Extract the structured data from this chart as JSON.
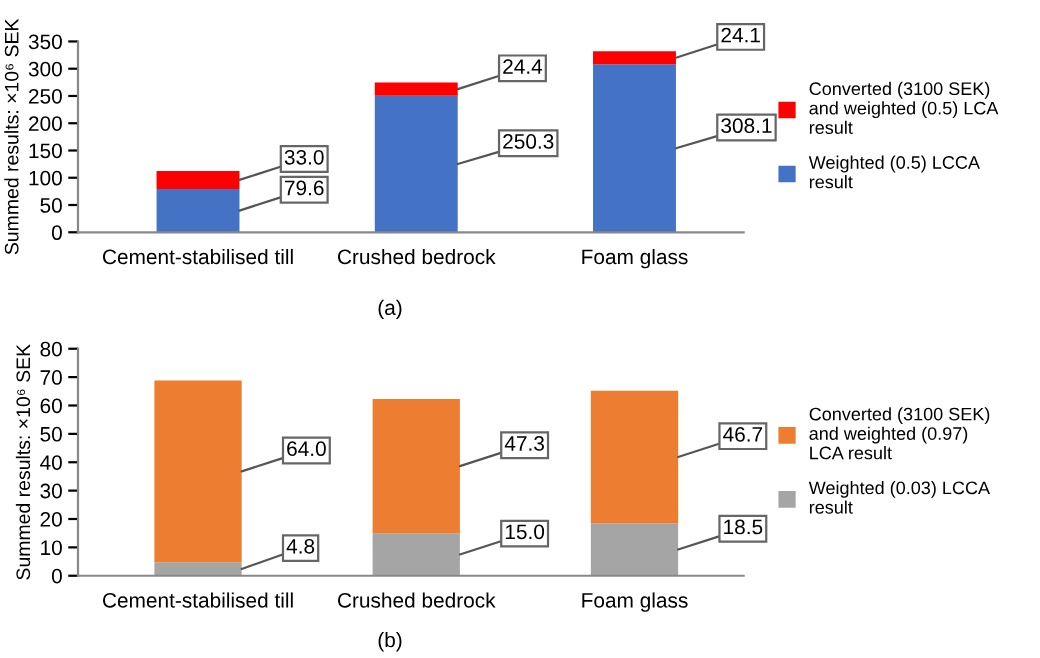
{
  "chart_data": [
    {
      "type": "bar",
      "stacked": true,
      "ylabel": "Summed results: ×10⁶ SEK",
      "categories": [
        "Cement-stabilised till",
        "Crushed bedrock",
        "Foam glass"
      ],
      "ylim": [
        0,
        350
      ],
      "yticks": [
        0,
        50,
        100,
        150,
        200,
        250,
        300,
        350
      ],
      "legend": "right",
      "annotations": [
        "(a)"
      ],
      "series": [
        {
          "name": "Weighted (0.5) LCCA\nresult",
          "color": "#4472c4",
          "values": [
            79.6,
            250.3,
            308.1
          ],
          "value_labels": [
            "79.6",
            "250.3",
            "308.1"
          ]
        },
        {
          "name": "Converted (3100 SEK)\nand weighted (0.5) LCA\nresult",
          "color": "#ff0000",
          "values": [
            33.0,
            24.4,
            24.1
          ],
          "value_labels": [
            "33.0",
            "24.4",
            "24.1"
          ]
        }
      ]
    },
    {
      "type": "bar",
      "stacked": true,
      "ylabel": "Summed results: ×10⁶ SEK",
      "categories": [
        "Cement-stabilised till",
        "Crushed bedrock",
        "Foam glass"
      ],
      "ylim": [
        0,
        80
      ],
      "yticks": [
        0,
        10,
        20,
        30,
        40,
        50,
        60,
        70,
        80
      ],
      "legend": "right",
      "annotations": [
        "(b)"
      ],
      "series": [
        {
          "name": "Weighted (0.03) LCCA\nresult",
          "color": "#a5a5a5",
          "values": [
            4.8,
            15.0,
            18.5
          ],
          "value_labels": [
            "4.8",
            "15.0",
            "18.5"
          ]
        },
        {
          "name": "Converted (3100 SEK)\nand weighted (0.97)\nLCA result",
          "color": "#ed7d31",
          "values": [
            64.0,
            47.3,
            46.7
          ],
          "value_labels": [
            "64.0",
            "47.3",
            "46.7"
          ]
        }
      ]
    }
  ]
}
